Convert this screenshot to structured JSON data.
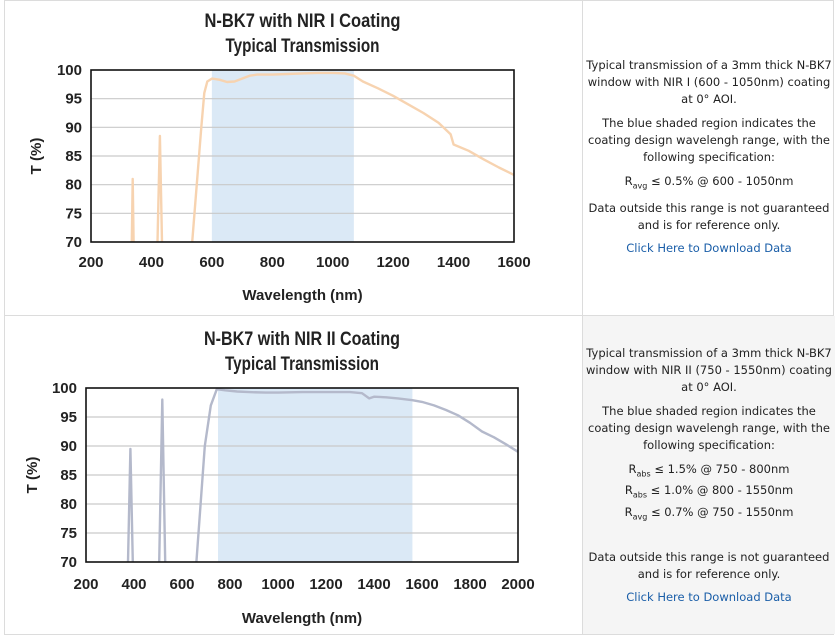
{
  "charts": [
    {
      "info": {
        "desc": "Typical transmission of a 3mm thick N-BK7 window with NIR I (600 - 1050nm) coating at 0° AOI.",
        "shade": "The blue shaded region indicates the coating design wavelengh range, with the following specification:",
        "specs": [
          {
            "sym": "R",
            "sub": "avg",
            "text": "≤ 0.5% @ 600 - 1050nm"
          }
        ],
        "disclaimer": "Data outside this range is not guaranteed and is for reference only.",
        "link": "Click Here to Download Data"
      }
    },
    {
      "info": {
        "desc": "Typical transmission of a 3mm thick N-BK7 window with NIR II (750 - 1550nm) coating at 0° AOI.",
        "shade": "The blue shaded region indicates the coating design wavelengh range, with the following specification:",
        "specs": [
          {
            "sym": "R",
            "sub": "abs",
            "text": "≤ 1.5% @ 750 - 800nm"
          },
          {
            "sym": "R",
            "sub": "abs",
            "text": "≤ 1.0% @ 800 - 1550nm"
          },
          {
            "sym": "R",
            "sub": "avg",
            "text": "≤ 0.7% @ 750 - 1550nm"
          }
        ],
        "disclaimer": "Data outside this range is not guaranteed and is for reference only.",
        "link": "Click Here to Download Data"
      }
    }
  ],
  "chart_data": [
    {
      "type": "line",
      "title": [
        "N-BK7 with NIR I Coating",
        "Typical Transmission"
      ],
      "xlabel": "Wavelength (nm)",
      "ylabel": "T (%)",
      "xlim": [
        200,
        1600
      ],
      "ylim": [
        70,
        100
      ],
      "xticks": [
        200,
        400,
        600,
        800,
        1000,
        1200,
        1400,
        1600
      ],
      "yticks": [
        70,
        75,
        80,
        85,
        90,
        95,
        100
      ],
      "grid": true,
      "shaded_range": [
        600,
        1070
      ],
      "shade_color": "#dbe9f6",
      "line_color": "#f7d3b0",
      "segments": [
        [
          [
            335,
            70
          ],
          [
            338,
            81
          ],
          [
            341,
            70
          ]
        ],
        [
          [
            420,
            70
          ],
          [
            428,
            88.5
          ],
          [
            435,
            70
          ]
        ],
        [
          [
            535,
            70
          ],
          [
            565,
            90
          ],
          [
            575,
            96
          ],
          [
            585,
            98
          ],
          [
            600,
            98.5
          ],
          [
            625,
            98.3
          ],
          [
            650,
            97.9
          ],
          [
            675,
            98
          ],
          [
            700,
            98.5
          ],
          [
            725,
            99
          ],
          [
            750,
            99.2
          ],
          [
            800,
            99.2
          ],
          [
            850,
            99.3
          ],
          [
            900,
            99.4
          ],
          [
            950,
            99.5
          ],
          [
            1000,
            99.5
          ],
          [
            1040,
            99.4
          ],
          [
            1070,
            99
          ],
          [
            1100,
            98
          ],
          [
            1150,
            96.8
          ],
          [
            1200,
            95.5
          ],
          [
            1250,
            94
          ],
          [
            1300,
            92.5
          ],
          [
            1350,
            90.8
          ],
          [
            1390,
            88.8
          ],
          [
            1400,
            87
          ],
          [
            1450,
            85.9
          ],
          [
            1500,
            84.4
          ],
          [
            1550,
            83
          ],
          [
            1600,
            81.7
          ]
        ]
      ]
    },
    {
      "type": "line",
      "title": [
        "N-BK7 with NIR II Coating",
        "Typical Transmission"
      ],
      "xlabel": "Wavelength (nm)",
      "ylabel": "T (%)",
      "xlim": [
        200,
        2000
      ],
      "ylim": [
        70,
        100
      ],
      "xticks": [
        200,
        400,
        600,
        800,
        1000,
        1200,
        1400,
        1600,
        1800,
        2000
      ],
      "yticks": [
        70,
        75,
        80,
        85,
        90,
        95,
        100
      ],
      "grid": true,
      "shaded_range": [
        750,
        1560
      ],
      "shade_color": "#dbe9f6",
      "line_color": "#b4b9cb",
      "segments": [
        [
          [
            375,
            70
          ],
          [
            385,
            89.5
          ],
          [
            395,
            70
          ]
        ],
        [
          [
            505,
            70
          ],
          [
            518,
            98
          ],
          [
            530,
            70
          ]
        ],
        [
          [
            660,
            70
          ],
          [
            695,
            90
          ],
          [
            720,
            97
          ],
          [
            745,
            99.8
          ],
          [
            780,
            99.6
          ],
          [
            830,
            99.4
          ],
          [
            880,
            99.3
          ],
          [
            950,
            99.2
          ],
          [
            1000,
            99.2
          ],
          [
            1100,
            99.3
          ],
          [
            1200,
            99.3
          ],
          [
            1300,
            99.3
          ],
          [
            1350,
            99.1
          ],
          [
            1380,
            98.2
          ],
          [
            1400,
            98.5
          ],
          [
            1450,
            98.4
          ],
          [
            1500,
            98.2
          ],
          [
            1560,
            97.9
          ],
          [
            1600,
            97.6
          ],
          [
            1650,
            97
          ],
          [
            1700,
            96.2
          ],
          [
            1750,
            95.3
          ],
          [
            1800,
            94
          ],
          [
            1850,
            92.5
          ],
          [
            1900,
            91.5
          ],
          [
            1950,
            90.3
          ],
          [
            2000,
            89
          ]
        ]
      ]
    }
  ]
}
